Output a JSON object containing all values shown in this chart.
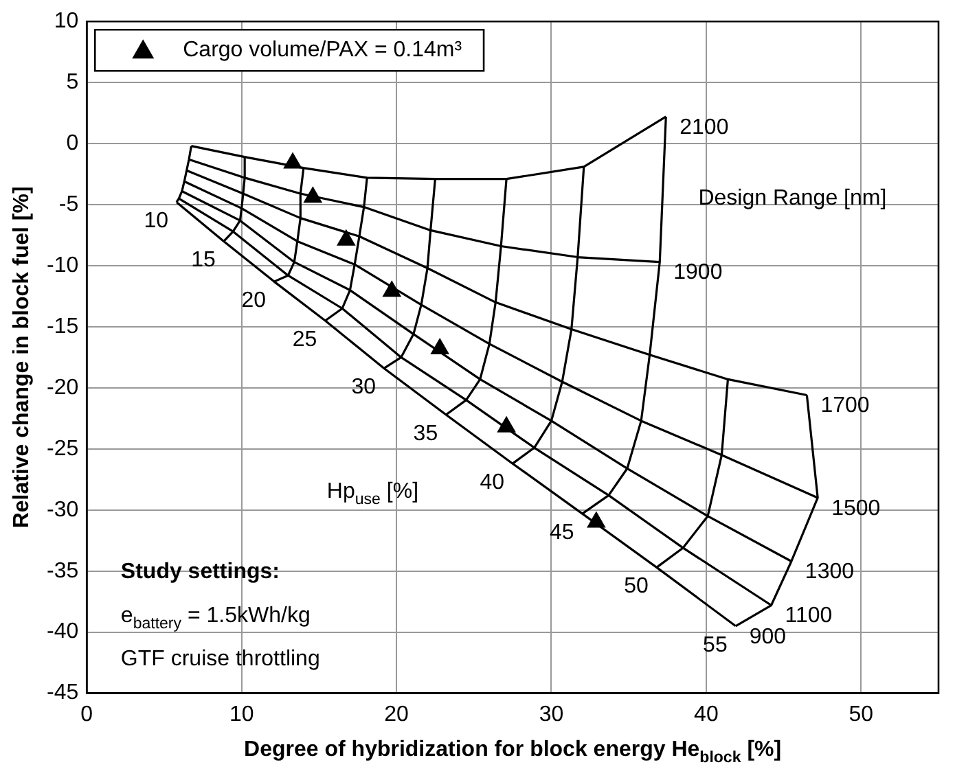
{
  "chart_data": {
    "type": "line",
    "xlabel": "Degree of hybridization for block energy He$_{block}$ [%]",
    "ylabel": "Relative change in block fuel [%]",
    "xlim": [
      0,
      55
    ],
    "ylim": [
      -45,
      10
    ],
    "xticks": [
      0,
      10,
      20,
      30,
      40,
      50
    ],
    "yticks": [
      -45,
      -40,
      -35,
      -30,
      -25,
      -20,
      -15,
      -10,
      -5,
      0,
      5,
      10
    ],
    "grid": true,
    "legend": "top left",
    "marker": "none",
    "line_style": "solid",
    "series": [
      {
        "name": "2100",
        "color": "#000000",
        "x": [
          6.75,
          10.2,
          14.0,
          18.1,
          22.5,
          27.1,
          32.1,
          37.4
        ],
        "values": [
          -0.2,
          -1.1,
          -2.0,
          -2.8,
          -2.9,
          -2.9,
          -1.9,
          2.2
        ]
      },
      {
        "name": "1900",
        "color": "#000000",
        "x": [
          6.6,
          10.2,
          13.8,
          17.9,
          22.2,
          26.75,
          31.7,
          37.0
        ],
        "values": [
          -1.3,
          -2.8,
          -4.1,
          -5.2,
          -7.1,
          -8.4,
          -9.3,
          -9.7
        ]
      },
      {
        "name": "1700",
        "color": "#000000",
        "x": [
          6.45,
          10.1,
          13.8,
          17.6,
          22.0,
          26.4,
          31.3,
          36.35,
          41.4,
          46.5
        ],
        "values": [
          -2.2,
          -4.1,
          -6.1,
          -7.6,
          -10.2,
          -13.0,
          -15.2,
          -17.3,
          -19.3,
          -20.6
        ]
      },
      {
        "name": "1500",
        "color": "#000000",
        "x": [
          6.3,
          10.0,
          13.6,
          17.3,
          21.6,
          26.0,
          30.7,
          35.8,
          41.0,
          47.2
        ],
        "values": [
          -3.1,
          -5.3,
          -8.0,
          -9.9,
          -13.2,
          -16.4,
          -19.5,
          -22.7,
          -25.5,
          -29.0
        ]
      },
      {
        "name": "1300",
        "color": "#000000",
        "x": [
          6.15,
          9.9,
          13.4,
          17.0,
          21.1,
          25.4,
          30.0,
          34.9,
          40.1,
          45.5
        ],
        "values": [
          -3.9,
          -6.3,
          -9.7,
          -12.0,
          -15.6,
          -19.3,
          -22.7,
          -26.6,
          -30.5,
          -34.2
        ]
      },
      {
        "name": "1100",
        "color": "#000000",
        "x": [
          5.95,
          9.45,
          13.0,
          16.5,
          20.3,
          24.5,
          28.9,
          33.7,
          38.5,
          44.2
        ],
        "values": [
          -4.5,
          -7.2,
          -10.8,
          -13.5,
          -17.5,
          -21.0,
          -24.9,
          -28.8,
          -33.1,
          -37.8
        ]
      },
      {
        "name": "900",
        "color": "#000000",
        "x": [
          5.8,
          8.85,
          12.1,
          15.4,
          19.2,
          23.2,
          27.5,
          32.0,
          36.8,
          41.9
        ],
        "values": [
          -4.8,
          -8.0,
          -11.3,
          -14.5,
          -18.4,
          -22.2,
          -26.2,
          -30.3,
          -34.7,
          -39.5
        ]
      },
      {
        "name": "10",
        "color": "#000000",
        "x": [
          6.75,
          6.6,
          6.45,
          6.3,
          6.15,
          5.95,
          5.8
        ],
        "values": [
          -0.2,
          -1.3,
          -2.2,
          -3.1,
          -3.9,
          -4.5,
          -4.8
        ]
      },
      {
        "name": "15",
        "color": "#000000",
        "x": [
          10.2,
          10.2,
          10.1,
          10.0,
          9.9,
          9.45,
          8.85
        ],
        "values": [
          -1.1,
          -2.8,
          -4.1,
          -5.3,
          -6.3,
          -7.2,
          -8.0
        ]
      },
      {
        "name": "20",
        "color": "#000000",
        "x": [
          14.0,
          13.8,
          13.8,
          13.6,
          13.4,
          13.0,
          12.1
        ],
        "values": [
          -2.0,
          -4.1,
          -6.1,
          -8.0,
          -9.7,
          -10.8,
          -11.3
        ]
      },
      {
        "name": "25",
        "color": "#000000",
        "x": [
          18.1,
          17.9,
          17.6,
          17.3,
          17.0,
          16.5,
          15.4
        ],
        "values": [
          -2.8,
          -5.2,
          -7.6,
          -9.9,
          -12.0,
          -13.5,
          -14.5
        ]
      },
      {
        "name": "30",
        "color": "#000000",
        "x": [
          22.5,
          22.2,
          22.0,
          21.6,
          21.1,
          20.3,
          19.2
        ],
        "values": [
          -2.9,
          -7.1,
          -10.2,
          -13.2,
          -15.6,
          -17.5,
          -18.4
        ]
      },
      {
        "name": "35",
        "color": "#000000",
        "x": [
          27.1,
          26.75,
          26.4,
          26.0,
          25.4,
          24.5,
          23.2
        ],
        "values": [
          -2.9,
          -8.4,
          -13.0,
          -16.4,
          -19.3,
          -21.0,
          -22.2
        ]
      },
      {
        "name": "40",
        "color": "#000000",
        "x": [
          32.1,
          31.7,
          31.3,
          30.7,
          30.0,
          28.9,
          27.5
        ],
        "values": [
          -1.9,
          -9.3,
          -15.2,
          -19.5,
          -22.7,
          -24.9,
          -26.2
        ]
      },
      {
        "name": "45",
        "color": "#000000",
        "x": [
          37.4,
          37.0,
          36.35,
          35.8,
          34.9,
          33.7,
          32.0
        ],
        "values": [
          2.2,
          -9.7,
          -17.3,
          -22.7,
          -26.6,
          -28.8,
          -30.3
        ]
      },
      {
        "name": "50",
        "color": "#000000",
        "x": [
          41.4,
          41.0,
          40.1,
          38.5,
          36.8
        ],
        "values": [
          -19.3,
          -25.5,
          -30.5,
          -33.1,
          -34.7
        ]
      },
      {
        "name": "55",
        "color": "#000000",
        "x": [
          46.5,
          47.2,
          45.5,
          44.2,
          41.9
        ],
        "values": [
          -20.6,
          -29.0,
          -34.2,
          -37.8,
          -39.5
        ]
      },
      {
        "name": "Cargo volume/PAX = 0.14m³",
        "type": "scatter",
        "marker": "triangle",
        "color": "#000000",
        "x": [
          13.3,
          14.6,
          16.75,
          19.7,
          22.8,
          27.1,
          32.9
        ],
        "values": [
          -1.6,
          -4.4,
          -7.9,
          -12.1,
          -16.8,
          -23.2,
          -31.0
        ]
      }
    ],
    "annotations": [
      "Design Range [nm]",
      "Hp$_{use}$ [%]",
      "Study settings:",
      "e$_{battery}$ = 1.5kWh/kg",
      "GTF cruise throttling"
    ]
  }
}
